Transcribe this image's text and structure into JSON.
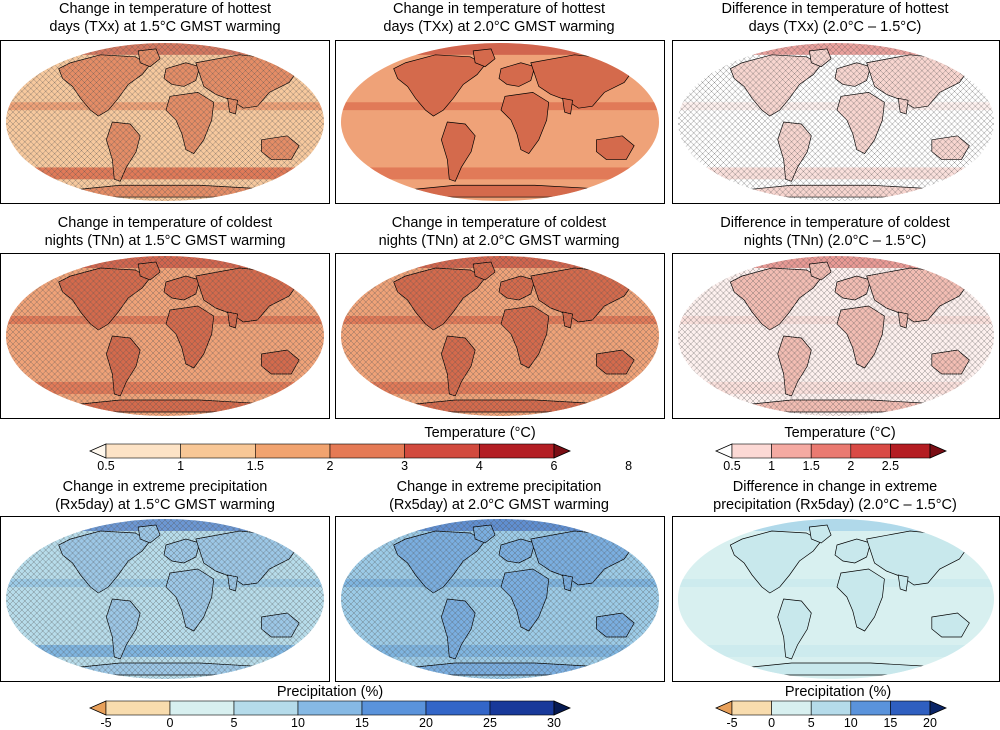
{
  "panels": [
    {
      "line1": "Change in temperature of hottest",
      "line2": "days (TXx) at 1.5°C GMST warming",
      "scheme": "temp",
      "level": 0.45,
      "hatch": true
    },
    {
      "line1": "Change in temperature of hottest",
      "line2": "days (TXx) at 2.0°C GMST warming",
      "scheme": "temp",
      "level": 0.62,
      "hatch": false
    },
    {
      "line1": "Difference in temperature of hottest",
      "line2": "days (TXx) (2.0°C – 1.5°C)",
      "scheme": "tempdiff",
      "level": 0.2,
      "hatch": true
    },
    {
      "line1": "Change in temperature of coldest",
      "line2": "nights (TNn) at 1.5°C GMST warming",
      "scheme": "temp",
      "level": 0.55,
      "hatch": true
    },
    {
      "line1": "Change in temperature of coldest",
      "line2": "nights (TNn) at 2.0°C GMST warming",
      "scheme": "temp",
      "level": 0.65,
      "hatch": true
    },
    {
      "line1": "Difference in temperature of coldest",
      "line2": "nights (TNn) (2.0°C – 1.5°C)",
      "scheme": "tempdiff",
      "level": 0.3,
      "hatch": true
    },
    {
      "line1": "Change in extreme precipitation",
      "line2": "(Rx5day) at 1.5°C GMST warming",
      "scheme": "precip",
      "level": 0.45,
      "hatch": true
    },
    {
      "line1": "Change in extreme precipitation",
      "line2": "(Rx5day) at 2.0°C GMST warming",
      "scheme": "precip",
      "level": 0.6,
      "hatch": true
    },
    {
      "line1": "Difference in change in extreme",
      "line2": "precipitation (Rx5day) (2.0°C – 1.5°C)",
      "scheme": "precipdiff",
      "level": 0.3,
      "hatch": false
    }
  ],
  "colorbars": {
    "temp_main": {
      "label": "Temperature (°C)",
      "ticks": [
        "0.5",
        "1",
        "1.5",
        "2",
        "3",
        "4",
        "6",
        "8"
      ],
      "colors": [
        "#fff8ee",
        "#fde3c6",
        "#f8c796",
        "#f1a36f",
        "#e57a55",
        "#d24a3e",
        "#b31e24",
        "#7a0d14"
      ]
    },
    "temp_diff": {
      "label": "Temperature (°C)",
      "ticks": [
        "0.5",
        "1",
        "1.5",
        "2",
        "2.5"
      ],
      "colors": [
        "#ffffff",
        "#fcd9d5",
        "#f5aaa2",
        "#ea7a71",
        "#d94a45",
        "#b41d22",
        "#7a0d14"
      ]
    },
    "precip_main": {
      "label": "Precipitation (%)",
      "ticks": [
        "-5",
        "0",
        "5",
        "10",
        "15",
        "20",
        "25",
        "30"
      ],
      "colors": [
        "#e8a05a",
        "#f8dcae",
        "#d8f0f0",
        "#b5dbea",
        "#86b9e4",
        "#5a93db",
        "#3366c8",
        "#18399a",
        "#061a52"
      ]
    },
    "precip_diff": {
      "label": "Precipitation (%)",
      "ticks": [
        "-5",
        "0",
        "5",
        "10",
        "15",
        "20"
      ],
      "colors": [
        "#e8a05a",
        "#f8dcae",
        "#d8f0f0",
        "#b5dbea",
        "#5a93db",
        "#2f5fc0",
        "#0a2466"
      ]
    }
  }
}
